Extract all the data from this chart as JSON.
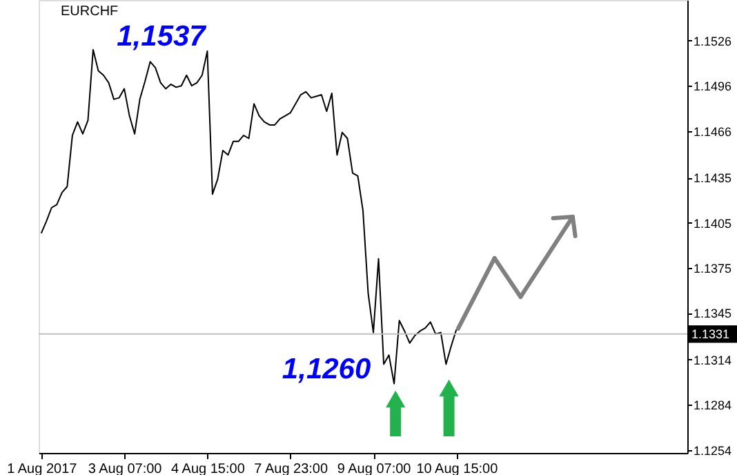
{
  "chart_data": {
    "type": "line",
    "title": "EURCHF",
    "categories": [
      "1 Aug 2017",
      null,
      null,
      null,
      null,
      null,
      null,
      null,
      null,
      null,
      null,
      null,
      null,
      null,
      null,
      null,
      "3 Aug 07:00",
      null,
      null,
      null,
      null,
      null,
      null,
      null,
      null,
      null,
      null,
      null,
      null,
      null,
      null,
      null,
      "4 Aug 15:00",
      null,
      null,
      null,
      null,
      null,
      null,
      null,
      null,
      null,
      null,
      null,
      null,
      null,
      null,
      null,
      "7 Aug 23:00",
      null,
      null,
      null,
      null,
      null,
      null,
      null,
      null,
      null,
      null,
      null,
      null,
      null,
      null,
      null,
      "9 Aug 07:00",
      null,
      null,
      null,
      null,
      null,
      null,
      null,
      null,
      null,
      null,
      null,
      null,
      null,
      null,
      null,
      "10 Aug 15:00",
      null,
      null,
      null,
      null,
      null,
      null,
      null,
      null,
      null,
      null,
      null,
      null,
      null,
      null,
      null,
      null,
      null,
      null,
      null,
      null,
      null,
      null,
      null,
      null,
      null,
      null,
      null,
      null,
      null,
      null,
      null,
      null,
      null,
      null,
      null,
      null,
      null,
      null,
      null,
      null,
      null,
      null,
      null,
      null
    ],
    "series": [
      {
        "color": "#000000",
        "values": [
          1.1398,
          1.1406,
          1.1415,
          1.1417,
          1.1425,
          1.1429,
          1.1463,
          1.1472,
          1.1464,
          1.1473,
          1.152,
          1.1506,
          1.1503,
          1.1498,
          1.1487,
          1.1488,
          1.1494,
          1.1476,
          1.1464,
          1.1487,
          1.1499,
          1.1512,
          1.1508,
          1.1498,
          1.1494,
          1.1497,
          1.1495,
          1.1496,
          1.1503,
          1.1496,
          1.1498,
          1.1503,
          1.1519,
          1.1424,
          1.1434,
          1.1453,
          1.145,
          1.1459,
          1.1459,
          1.1463,
          1.1461,
          1.1484,
          1.1476,
          1.1472,
          1.147,
          1.147,
          1.1474,
          1.1476,
          1.1478,
          1.1484,
          1.149,
          1.1492,
          1.1488,
          1.1489,
          1.149,
          1.1479,
          1.1491,
          1.145,
          1.1465,
          1.1461,
          1.1438,
          1.1436,
          1.1413,
          1.1358,
          1.1332,
          1.1381,
          1.1311,
          1.1317,
          1.1298,
          1.134,
          1.1333,
          1.1325,
          1.133,
          1.1333,
          1.1335,
          1.1339,
          1.1331,
          1.1332,
          1.1311,
          1.1323,
          1.1334,
          null,
          null,
          null,
          null,
          null,
          null,
          null,
          null,
          null,
          null,
          null,
          null,
          null,
          null,
          null,
          null,
          null,
          null,
          null,
          null,
          null,
          null,
          null,
          null,
          null,
          null,
          null,
          null,
          null,
          null,
          null,
          null,
          null,
          null,
          null,
          null,
          null,
          null,
          null,
          null,
          null,
          null,
          null,
          null
        ]
      }
    ],
    "ylim": [
      1.1252,
      1.1553
    ],
    "yticks": [
      1.1254,
      1.1284,
      1.1314,
      1.1345,
      1.1375,
      1.1405,
      1.1435,
      1.1466,
      1.1496,
      1.1526
    ],
    "ref_lines": [
      {
        "axis": "y",
        "value": 1.1331,
        "label": "1.1331",
        "color": "#c0c0c0"
      }
    ],
    "annotations": [
      "1,1537",
      "1,1260"
    ]
  }
}
